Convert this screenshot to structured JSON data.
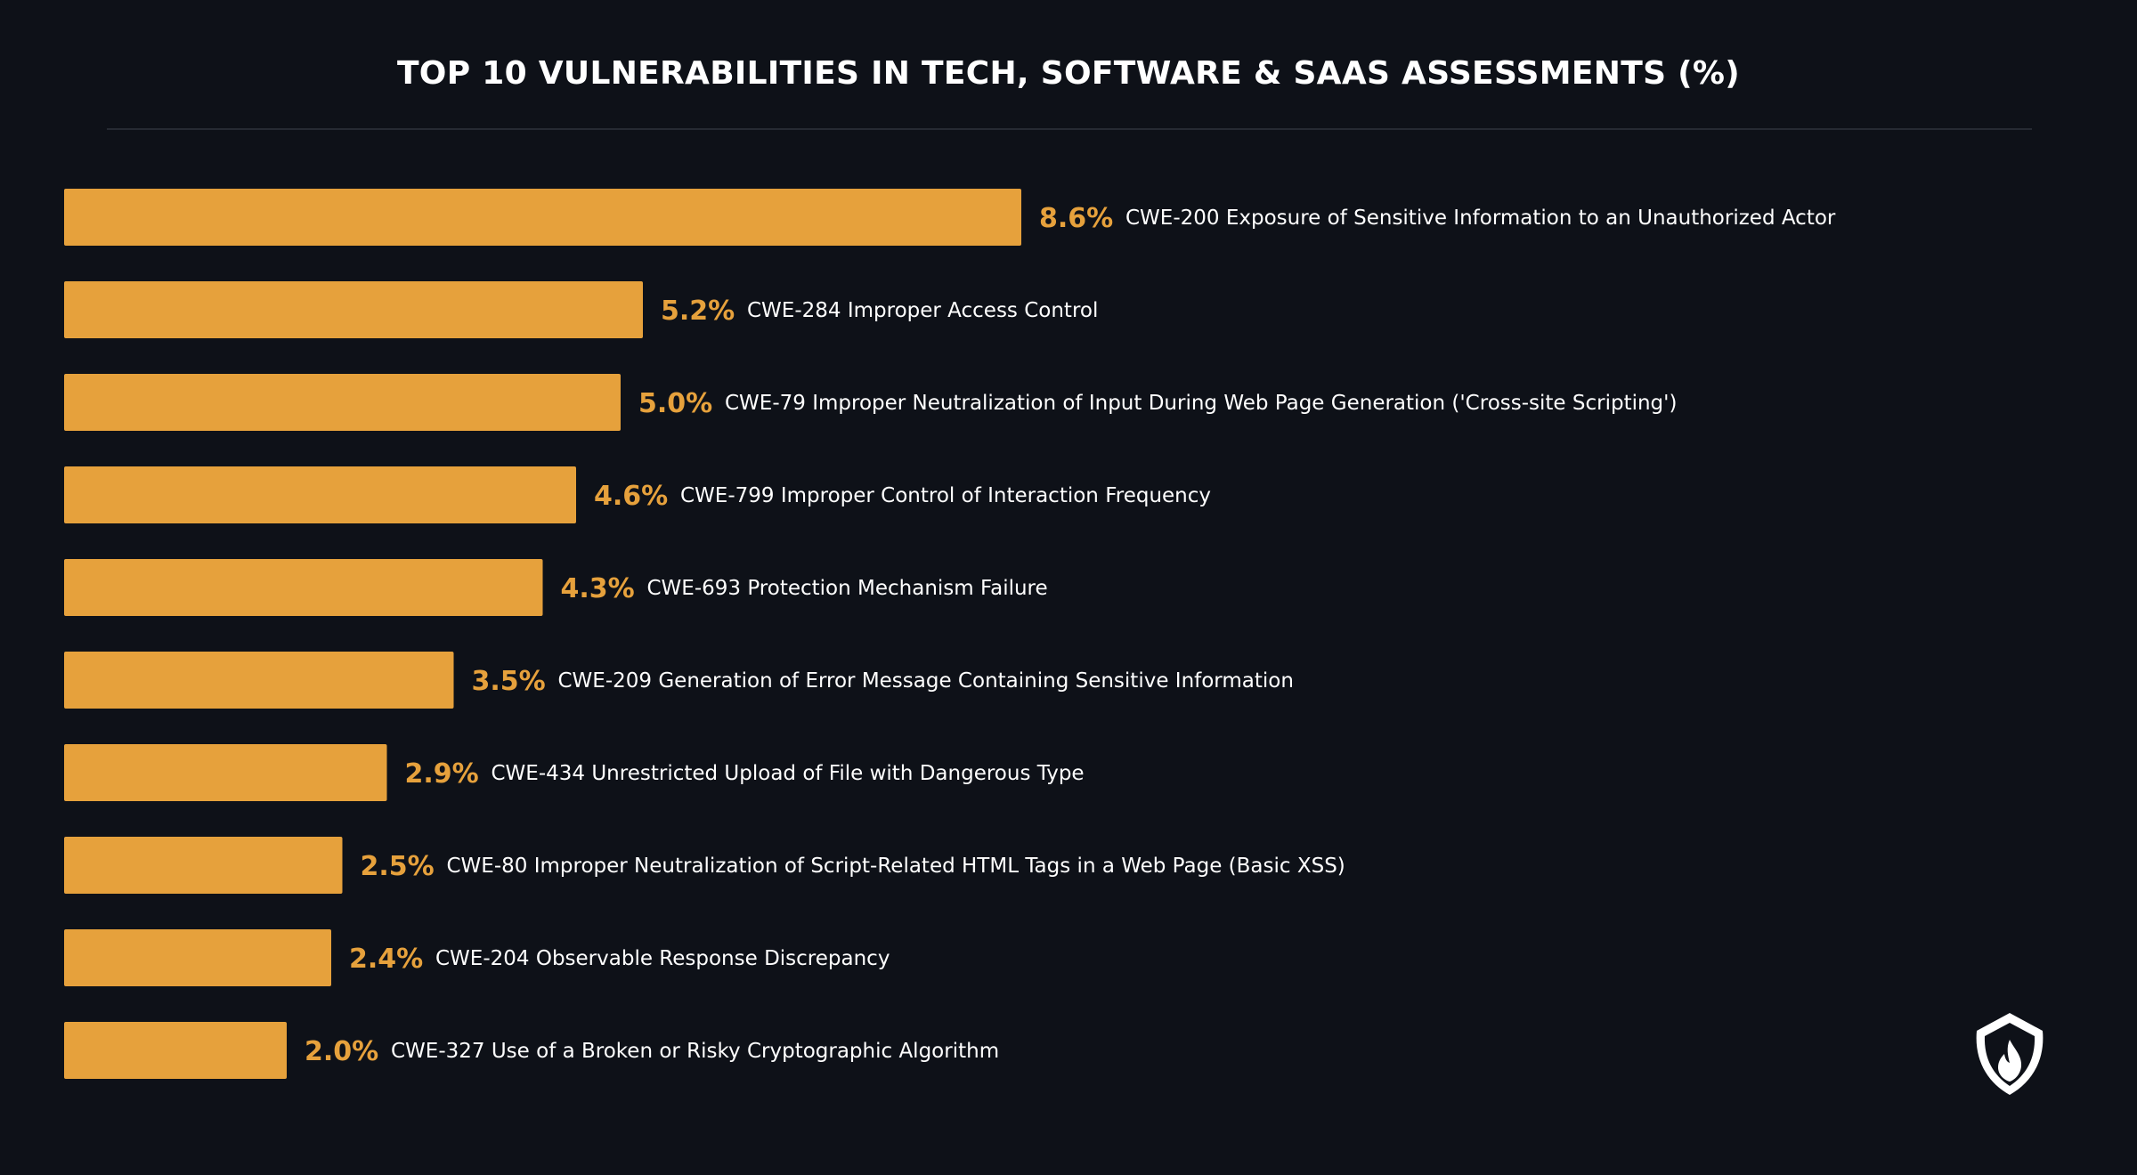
{
  "chart_data": {
    "type": "bar",
    "orientation": "horizontal",
    "title": "TOP 10 VULNERABILITIES IN TECH, SOFTWARE & SAAS ASSESSMENTS (%)",
    "categories": [
      "CWE-200 Exposure of Sensitive Information to an Unauthorized Actor",
      "CWE-284 Improper Access Control",
      "CWE-79 Improper Neutralization of Input During Web Page Generation ('Cross-site Scripting')",
      "CWE-799 Improper Control of Interaction Frequency",
      "CWE-693 Protection Mechanism Failure",
      "CWE-209 Generation of Error Message Containing Sensitive Information",
      "CWE-434 Unrestricted Upload of File with Dangerous Type",
      "CWE-80 Improper Neutralization of Script-Related HTML Tags in a Web Page (Basic XSS)",
      "CWE-204 Observable Response Discrepancy",
      "CWE-327 Use of a Broken or Risky Cryptographic Algorithm"
    ],
    "values": [
      8.6,
      5.2,
      5.0,
      4.6,
      4.3,
      3.5,
      2.9,
      2.5,
      2.4,
      2.0
    ],
    "value_labels": [
      "8.6%",
      "5.2%",
      "5.0%",
      "4.6%",
      "4.3%",
      "3.5%",
      "2.9%",
      "2.5%",
      "2.4%",
      "2.0%"
    ],
    "xlabel": "",
    "ylabel": "",
    "grid": false,
    "legend": "none",
    "colors": {
      "background": "#0e1118",
      "bar": "#e6a13c",
      "value_label": "#e6a13c",
      "category_label": "#ffffff",
      "title": "#ffffff",
      "rule": "#262a33"
    }
  },
  "logo": {
    "icon": "shield-flame-icon"
  }
}
